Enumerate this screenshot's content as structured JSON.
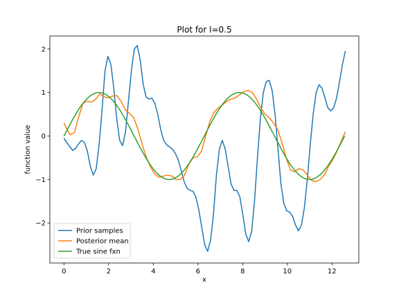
{
  "chart_data": {
    "type": "line",
    "title": "Plot for l=0.5",
    "xlabel": "x",
    "ylabel": "function value",
    "xlim": [
      -0.63,
      13.2
    ],
    "ylim": [
      -2.92,
      2.3
    ],
    "xticks": [
      0,
      2,
      4,
      6,
      8,
      10,
      12
    ],
    "yticks": [
      -2,
      -1,
      0,
      1,
      2
    ],
    "grid": false,
    "legend_position": "lower-left",
    "series": [
      {
        "name": "Prior samples",
        "color": "#1f77b4",
        "points": [
          [
            0.0,
            -0.05
          ],
          [
            0.1,
            -0.15
          ],
          [
            0.2,
            -0.25
          ],
          [
            0.3,
            -0.33
          ],
          [
            0.4,
            -0.28
          ],
          [
            0.5,
            -0.18
          ],
          [
            0.6,
            -0.1
          ],
          [
            0.7,
            -0.15
          ],
          [
            0.8,
            -0.35
          ],
          [
            0.9,
            -0.7
          ],
          [
            1.0,
            -0.9
          ],
          [
            1.1,
            -0.75
          ],
          [
            1.2,
            -0.2
          ],
          [
            1.3,
            0.6
          ],
          [
            1.4,
            1.5
          ],
          [
            1.5,
            1.83
          ],
          [
            1.6,
            1.65
          ],
          [
            1.7,
            1.1
          ],
          [
            1.8,
            0.4
          ],
          [
            1.9,
            -0.1
          ],
          [
            2.0,
            -0.22
          ],
          [
            2.1,
            0.1
          ],
          [
            2.2,
            0.8
          ],
          [
            2.3,
            1.5
          ],
          [
            2.4,
            2.0
          ],
          [
            2.5,
            2.08
          ],
          [
            2.6,
            1.75
          ],
          [
            2.7,
            1.2
          ],
          [
            2.8,
            0.9
          ],
          [
            2.9,
            0.85
          ],
          [
            3.0,
            0.87
          ],
          [
            3.1,
            0.75
          ],
          [
            3.2,
            0.5
          ],
          [
            3.3,
            0.15
          ],
          [
            3.4,
            -0.1
          ],
          [
            3.5,
            -0.2
          ],
          [
            3.6,
            -0.25
          ],
          [
            3.7,
            -0.3
          ],
          [
            3.8,
            -0.4
          ],
          [
            3.9,
            -0.55
          ],
          [
            4.0,
            -0.8
          ],
          [
            4.1,
            -1.05
          ],
          [
            4.2,
            -1.2
          ],
          [
            4.3,
            -1.25
          ],
          [
            4.4,
            -1.27
          ],
          [
            4.5,
            -1.4
          ],
          [
            4.6,
            -1.7
          ],
          [
            4.7,
            -2.1
          ],
          [
            4.8,
            -2.5
          ],
          [
            4.9,
            -2.65
          ],
          [
            5.0,
            -2.4
          ],
          [
            5.1,
            -1.8
          ],
          [
            5.2,
            -0.9
          ],
          [
            5.3,
            -0.3
          ],
          [
            5.4,
            -0.1
          ],
          [
            5.5,
            -0.3
          ],
          [
            5.6,
            -0.7
          ],
          [
            5.7,
            -1.1
          ],
          [
            5.8,
            -1.25
          ],
          [
            5.9,
            -1.25
          ],
          [
            6.0,
            -1.4
          ],
          [
            6.1,
            -1.8
          ],
          [
            6.2,
            -2.25
          ],
          [
            6.3,
            -2.43
          ],
          [
            6.4,
            -2.2
          ],
          [
            6.5,
            -1.5
          ],
          [
            6.6,
            -0.5
          ],
          [
            6.7,
            0.4
          ],
          [
            6.8,
            1.0
          ],
          [
            6.9,
            1.25
          ],
          [
            7.0,
            1.28
          ],
          [
            7.1,
            1.05
          ],
          [
            7.2,
            0.5
          ],
          [
            7.3,
            -0.3
          ],
          [
            7.4,
            -1.1
          ],
          [
            7.5,
            -1.55
          ],
          [
            7.6,
            -1.72
          ],
          [
            7.7,
            -1.75
          ],
          [
            7.8,
            -1.85
          ],
          [
            7.9,
            -2.05
          ],
          [
            8.0,
            -2.18
          ],
          [
            8.1,
            -2.05
          ],
          [
            8.2,
            -1.65
          ],
          [
            8.3,
            -1.0
          ],
          [
            8.4,
            -0.2
          ],
          [
            8.5,
            0.5
          ],
          [
            8.6,
            1.0
          ],
          [
            8.7,
            1.18
          ],
          [
            8.8,
            1.1
          ],
          [
            8.9,
            0.88
          ],
          [
            9.0,
            0.65
          ],
          [
            9.1,
            0.58
          ],
          [
            9.2,
            0.65
          ],
          [
            9.3,
            0.88
          ],
          [
            9.4,
            1.25
          ],
          [
            9.5,
            1.65
          ],
          [
            9.6,
            1.96
          ]
        ],
        "x_scale": 1.3125
      },
      {
        "name": "Posterior mean",
        "color": "#ff7f0e",
        "points": [
          [
            0.0,
            0.3
          ],
          [
            0.2,
            0.1
          ],
          [
            0.3,
            0.03
          ],
          [
            0.5,
            0.08
          ],
          [
            0.7,
            0.45
          ],
          [
            0.9,
            0.75
          ],
          [
            1.1,
            0.8
          ],
          [
            1.3,
            0.78
          ],
          [
            1.5,
            0.85
          ],
          [
            1.7,
            0.97
          ],
          [
            1.9,
            0.9
          ],
          [
            2.1,
            0.88
          ],
          [
            2.3,
            0.92
          ],
          [
            2.5,
            0.93
          ],
          [
            2.7,
            0.8
          ],
          [
            2.9,
            0.6
          ],
          [
            3.1,
            0.52
          ],
          [
            3.3,
            0.42
          ],
          [
            3.5,
            0.15
          ],
          [
            3.7,
            -0.2
          ],
          [
            3.9,
            -0.5
          ],
          [
            4.1,
            -0.72
          ],
          [
            4.3,
            -0.88
          ],
          [
            4.5,
            -0.95
          ],
          [
            4.7,
            -0.92
          ],
          [
            4.9,
            -0.9
          ],
          [
            5.1,
            -0.92
          ],
          [
            5.3,
            -1.0
          ],
          [
            5.5,
            -1.0
          ],
          [
            5.7,
            -0.9
          ],
          [
            5.9,
            -0.65
          ],
          [
            6.1,
            -0.5
          ],
          [
            6.3,
            -0.48
          ],
          [
            6.5,
            -0.35
          ],
          [
            6.7,
            0.0
          ],
          [
            6.9,
            0.35
          ],
          [
            7.1,
            0.55
          ],
          [
            7.3,
            0.65
          ],
          [
            7.5,
            0.72
          ],
          [
            7.7,
            0.8
          ],
          [
            7.9,
            0.85
          ],
          [
            8.1,
            0.88
          ],
          [
            8.3,
            0.95
          ],
          [
            8.5,
            1.02
          ],
          [
            8.7,
            1.05
          ],
          [
            8.9,
            1.0
          ],
          [
            9.1,
            0.85
          ],
          [
            9.3,
            0.65
          ],
          [
            9.5,
            0.5
          ],
          [
            9.7,
            0.42
          ],
          [
            9.9,
            0.3
          ],
          [
            10.1,
            0.15
          ],
          [
            10.3,
            -0.15
          ],
          [
            10.5,
            -0.5
          ],
          [
            10.7,
            -0.78
          ],
          [
            10.9,
            -0.82
          ],
          [
            11.1,
            -0.75
          ],
          [
            11.3,
            -0.78
          ],
          [
            11.5,
            -0.9
          ],
          [
            11.7,
            -1.02
          ],
          [
            11.9,
            -1.05
          ],
          [
            12.1,
            -1.0
          ],
          [
            12.3,
            -0.9
          ],
          [
            12.5,
            -0.7
          ],
          [
            12.7,
            -0.55
          ],
          [
            12.9,
            -0.35
          ],
          [
            13.1,
            -0.12
          ],
          [
            13.3,
            0.1
          ]
        ],
        "x_scale": 0.9474
      },
      {
        "name": "True sine fxn",
        "color": "#2ca02c",
        "function": "sin",
        "x_range": [
          0,
          12.566
        ],
        "samples": 200
      }
    ]
  }
}
